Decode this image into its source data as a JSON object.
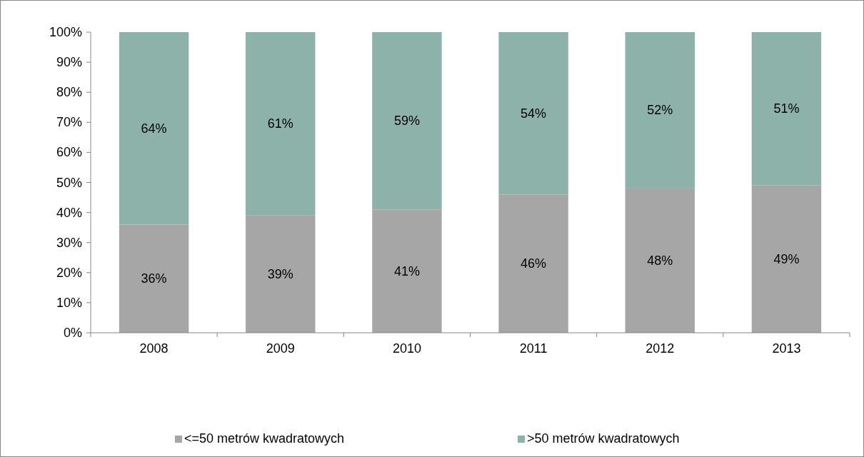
{
  "chart_data": {
    "type": "bar",
    "stacked": true,
    "categories": [
      "2008",
      "2009",
      "2010",
      "2011",
      "2012",
      "2013"
    ],
    "series": [
      {
        "name": "<=50 metrów kwadratowych",
        "color": "#a6a6a6",
        "values": [
          36,
          39,
          41,
          46,
          48,
          49
        ],
        "value_labels": [
          "36%",
          "39%",
          "41%",
          "46%",
          "48%",
          "49%"
        ]
      },
      {
        "name": ">50 metrów kwadratowych",
        "color": "#8cb2a9",
        "values": [
          64,
          61,
          59,
          54,
          52,
          51
        ],
        "value_labels": [
          "64%",
          "61%",
          "59%",
          "54%",
          "52%",
          "51%"
        ]
      }
    ],
    "ylim": [
      0,
      100
    ],
    "yticks": [
      {
        "value": 0,
        "label": "0%"
      },
      {
        "value": 10,
        "label": "10%"
      },
      {
        "value": 20,
        "label": "20%"
      },
      {
        "value": 30,
        "label": "30%"
      },
      {
        "value": 40,
        "label": "40%"
      },
      {
        "value": 50,
        "label": "50%"
      },
      {
        "value": 60,
        "label": "60%"
      },
      {
        "value": 70,
        "label": "70%"
      },
      {
        "value": 80,
        "label": "80%"
      },
      {
        "value": 90,
        "label": "90%"
      },
      {
        "value": 100,
        "label": "100%"
      }
    ],
    "grid": false,
    "legend": "bottom"
  }
}
